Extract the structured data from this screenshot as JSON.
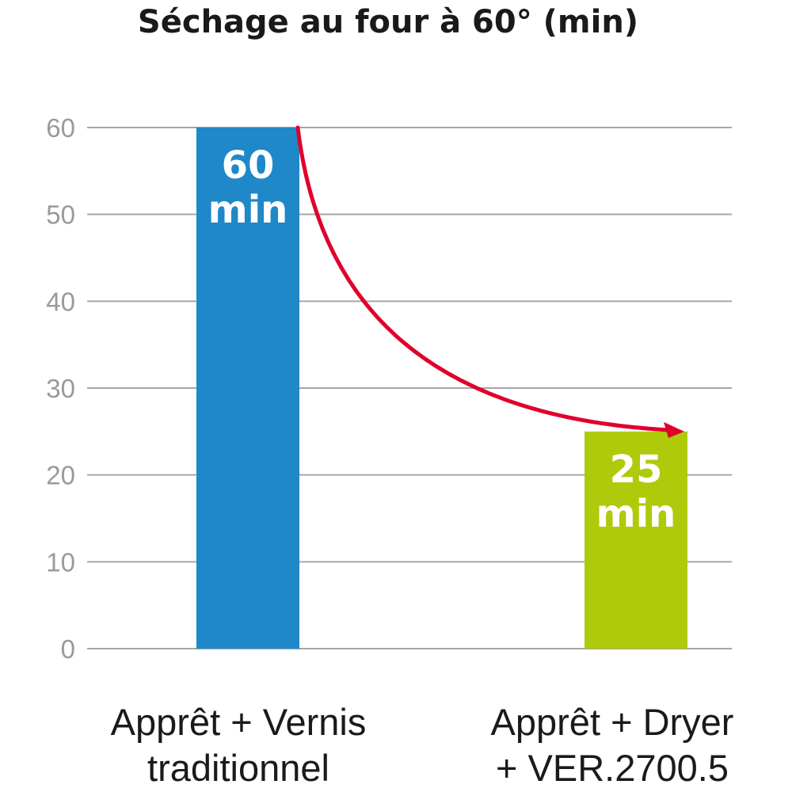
{
  "chart_data": {
    "type": "bar",
    "title": "Séchage au four à 60° (min)",
    "categories": [
      [
        "Apprêt + Vernis",
        "traditionnel"
      ],
      [
        "Apprêt + Dryer",
        "+ VER.2700.5"
      ]
    ],
    "values": [
      60,
      25
    ],
    "data_labels": [
      [
        "60",
        "min"
      ],
      [
        "25",
        "min"
      ]
    ],
    "bar_colors": [
      "#1e88c9",
      "#afca0b"
    ],
    "arrow_color": "#e0002b",
    "annotation": "arrow-curve-from-bar-1-top-to-bar-2-top",
    "yticks": [
      0,
      10,
      20,
      30,
      40,
      50,
      60
    ],
    "ylim": [
      0,
      60
    ],
    "grid": true,
    "gridline_color": "#a6a6a6",
    "xlabel": "",
    "ylabel": ""
  }
}
